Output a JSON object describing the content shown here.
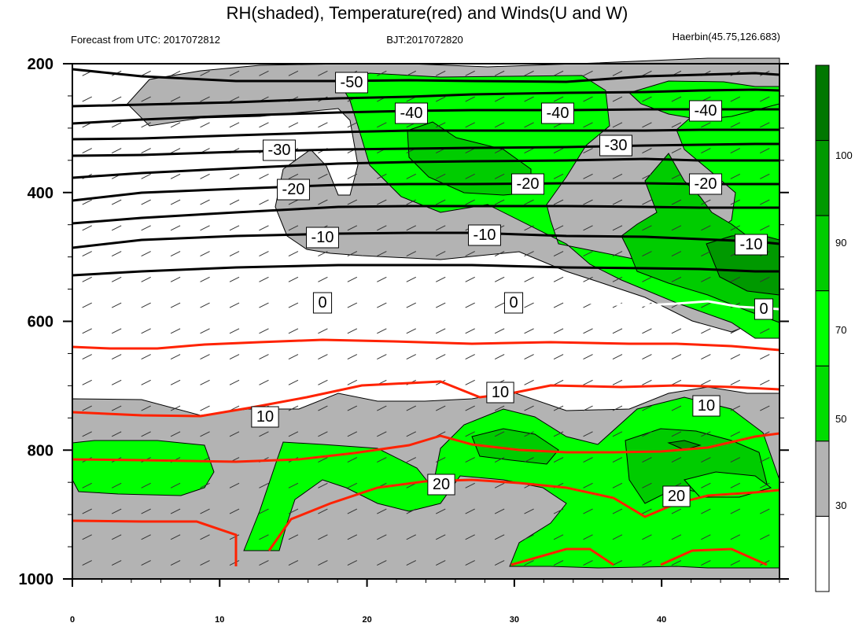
{
  "chart_data": {
    "type": "heatmap",
    "title": "RH(shaded), Temperature(red) and Winds(U and W)",
    "subtitle_left": "Forecast from UTC: 2017072812",
    "subtitle_center": "BJT:2017072820",
    "subtitle_right": "Haerbin(45.75,126.683)",
    "x": {
      "ticks": [
        0,
        10,
        20,
        30,
        40
      ],
      "range": [
        0,
        48
      ]
    },
    "y": {
      "ticks": [
        200,
        400,
        600,
        800,
        1000
      ],
      "range": [
        200,
        1000
      ],
      "inverted": true
    },
    "colorbar": {
      "labels": [
        "30",
        "50",
        "70",
        "90",
        "100"
      ],
      "colors": [
        "#ffffff",
        "#b3b3b3",
        "#00dd00",
        "#00ff00",
        "#00cc00",
        "#009900",
        "#007700"
      ]
    },
    "temperature_contours": {
      "black": [
        "-50",
        "-40",
        "-40",
        "-40",
        "-30",
        "-30",
        "-20",
        "-20",
        "-20",
        "-10",
        "-10",
        "-10"
      ],
      "white": [
        "0",
        "0",
        "0"
      ],
      "red": [
        "10",
        "10",
        "10",
        "20",
        "20"
      ]
    },
    "colors": {
      "rh_gray": "#b3b3b3",
      "rh_green": "#00ff00",
      "rh_mid_green": "#00cc00",
      "rh_dark_green": "#009900",
      "temp_red": "#ff2200",
      "temp_black": "#000000",
      "temp_white": "#ffffff"
    }
  }
}
